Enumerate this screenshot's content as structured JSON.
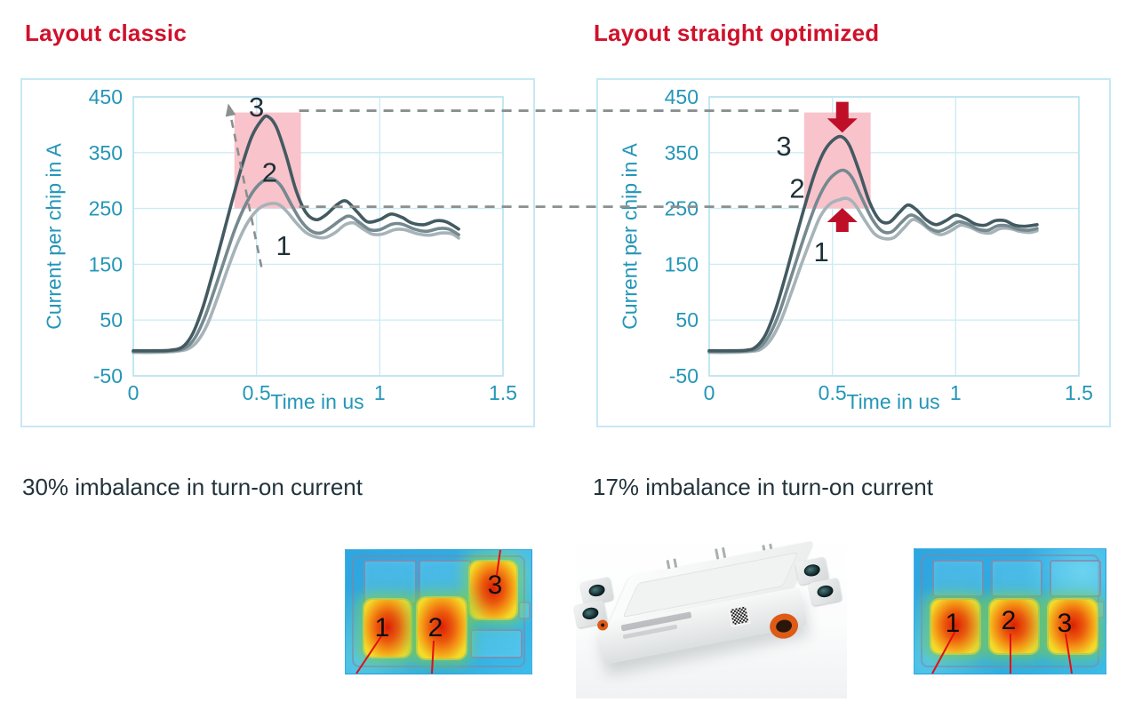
{
  "header": {
    "left_title": "Layout classic",
    "right_title": "Layout straight optimized"
  },
  "captions": {
    "left": "30% imbalance in turn-on current",
    "right": "17% imbalance in turn-on current"
  },
  "colors": {
    "title_red": "#d0112b",
    "arrow_red": "#bf0f28",
    "highlight_pink": "#f9c3cc",
    "axis_teal": "#2496b8",
    "grid": "#cdecf5",
    "plot_border": "#b9e3ef",
    "dashed_gray": "#8a8f90",
    "dark_text": "#22333b",
    "curve_1": "#a6b3b8",
    "curve_2": "#75898f",
    "curve_3": "#435a61",
    "leader_red": "#e40e12"
  },
  "chart_data": [
    {
      "type": "line",
      "title": "Layout classic",
      "xlabel": "Time in us",
      "ylabel": "Current per chip in A",
      "xlim": [
        0,
        1.5
      ],
      "ylim": [
        -50,
        450
      ],
      "xticks": [
        0,
        0.5,
        1,
        1.5
      ],
      "yticks": [
        450,
        350,
        250,
        150,
        50,
        -50
      ],
      "grid": true,
      "series": [
        {
          "name": "1",
          "color": "#a6b3b8",
          "peak_A": 258,
          "points": [
            [
              0,
              -8
            ],
            [
              0.08,
              -8
            ],
            [
              0.17,
              -6
            ],
            [
              0.22,
              -2
            ],
            [
              0.26,
              12
            ],
            [
              0.3,
              42
            ],
            [
              0.34,
              88
            ],
            [
              0.38,
              138
            ],
            [
              0.42,
              185
            ],
            [
              0.46,
              222
            ],
            [
              0.5,
              246
            ],
            [
              0.54,
              257
            ],
            [
              0.585,
              258
            ],
            [
              0.62,
              246
            ],
            [
              0.66,
              225
            ],
            [
              0.7,
              207
            ],
            [
              0.74,
              199
            ],
            [
              0.78,
              198
            ],
            [
              0.82,
              207
            ],
            [
              0.86,
              221
            ],
            [
              0.895,
              224
            ],
            [
              0.93,
              214
            ],
            [
              0.97,
              204
            ],
            [
              1.01,
              204
            ],
            [
              1.06,
              212
            ],
            [
              1.1,
              212
            ],
            [
              1.15,
              205
            ],
            [
              1.2,
              202
            ],
            [
              1.25,
              206
            ],
            [
              1.29,
              205
            ],
            [
              1.32,
              197
            ]
          ]
        },
        {
          "name": "2",
          "color": "#75898f",
          "peak_A": 303,
          "points": [
            [
              0,
              -6
            ],
            [
              0.08,
              -6
            ],
            [
              0.16,
              -5
            ],
            [
              0.21,
              0
            ],
            [
              0.25,
              18
            ],
            [
              0.29,
              55
            ],
            [
              0.33,
              105
            ],
            [
              0.37,
              158
            ],
            [
              0.41,
              210
            ],
            [
              0.45,
              252
            ],
            [
              0.49,
              283
            ],
            [
              0.53,
              300
            ],
            [
              0.565,
              303
            ],
            [
              0.6,
              290
            ],
            [
              0.64,
              258
            ],
            [
              0.68,
              228
            ],
            [
              0.72,
              210
            ],
            [
              0.76,
              206
            ],
            [
              0.8,
              216
            ],
            [
              0.85,
              232
            ],
            [
              0.88,
              236
            ],
            [
              0.92,
              224
            ],
            [
              0.96,
              212
            ],
            [
              1.0,
              212
            ],
            [
              1.05,
              222
            ],
            [
              1.09,
              222
            ],
            [
              1.14,
              213
            ],
            [
              1.19,
              209
            ],
            [
              1.24,
              214
            ],
            [
              1.28,
              213
            ],
            [
              1.32,
              203
            ]
          ]
        },
        {
          "name": "3",
          "color": "#435a61",
          "peak_A": 415,
          "points": [
            [
              0,
              -5
            ],
            [
              0.08,
              -5
            ],
            [
              0.15,
              -4
            ],
            [
              0.2,
              2
            ],
            [
              0.24,
              25
            ],
            [
              0.28,
              70
            ],
            [
              0.32,
              130
            ],
            [
              0.36,
              195
            ],
            [
              0.4,
              262
            ],
            [
              0.44,
              325
            ],
            [
              0.48,
              378
            ],
            [
              0.52,
              408
            ],
            [
              0.545,
              415
            ],
            [
              0.58,
              396
            ],
            [
              0.62,
              345
            ],
            [
              0.66,
              283
            ],
            [
              0.7,
              243
            ],
            [
              0.74,
              230
            ],
            [
              0.78,
              238
            ],
            [
              0.83,
              258
            ],
            [
              0.865,
              263
            ],
            [
              0.91,
              243
            ],
            [
              0.95,
              226
            ],
            [
              1.0,
              230
            ],
            [
              1.045,
              240
            ],
            [
              1.09,
              234
            ],
            [
              1.13,
              224
            ],
            [
              1.18,
              221
            ],
            [
              1.23,
              228
            ],
            [
              1.27,
              226
            ],
            [
              1.32,
              213
            ]
          ]
        }
      ],
      "annotations": {
        "highlight_box": {
          "t": [
            0.41,
            0.68
          ],
          "A": [
            250,
            422
          ]
        },
        "trend_arrow": {
          "from": [
            0.52,
            145
          ],
          "to": [
            0.385,
            438
          ]
        },
        "labels": [
          {
            "text": "3",
            "t": 0.5,
            "A": 432
          },
          {
            "text": "2",
            "t": 0.553,
            "A": 315
          },
          {
            "text": "1",
            "t": 0.61,
            "A": 183
          }
        ]
      }
    },
    {
      "type": "line",
      "title": "Layout straight optimized",
      "xlabel": "Time in us",
      "ylabel": "Current per chip in A",
      "xlim": [
        0,
        1.5
      ],
      "ylim": [
        -50,
        450
      ],
      "xticks": [
        0,
        0.5,
        1,
        1.5
      ],
      "yticks": [
        450,
        350,
        250,
        150,
        50,
        -50
      ],
      "grid": true,
      "series": [
        {
          "name": "1",
          "color": "#a6b3b8",
          "peak_A": 268,
          "points": [
            [
              0,
              -8
            ],
            [
              0.08,
              -8
            ],
            [
              0.17,
              -6
            ],
            [
              0.21,
              -2
            ],
            [
              0.25,
              15
            ],
            [
              0.29,
              48
            ],
            [
              0.33,
              95
            ],
            [
              0.37,
              145
            ],
            [
              0.41,
              192
            ],
            [
              0.45,
              235
            ],
            [
              0.49,
              258
            ],
            [
              0.53,
              266
            ],
            [
              0.56,
              268
            ],
            [
              0.59,
              258
            ],
            [
              0.63,
              230
            ],
            [
              0.67,
              205
            ],
            [
              0.71,
              196
            ],
            [
              0.75,
              198
            ],
            [
              0.79,
              215
            ],
            [
              0.825,
              230
            ],
            [
              0.86,
              224
            ],
            [
              0.9,
              210
            ],
            [
              0.94,
              203
            ],
            [
              0.98,
              210
            ],
            [
              1.02,
              220
            ],
            [
              1.06,
              216
            ],
            [
              1.1,
              208
            ],
            [
              1.14,
              206
            ],
            [
              1.18,
              214
            ],
            [
              1.22,
              214
            ],
            [
              1.26,
              209
            ],
            [
              1.3,
              207
            ],
            [
              1.33,
              210
            ]
          ]
        },
        {
          "name": "2",
          "color": "#75898f",
          "peak_A": 318,
          "points": [
            [
              0,
              -6
            ],
            [
              0.08,
              -6
            ],
            [
              0.16,
              -5
            ],
            [
              0.2,
              0
            ],
            [
              0.24,
              20
            ],
            [
              0.28,
              58
            ],
            [
              0.32,
              110
            ],
            [
              0.36,
              165
            ],
            [
              0.4,
              218
            ],
            [
              0.44,
              265
            ],
            [
              0.48,
              298
            ],
            [
              0.52,
              315
            ],
            [
              0.55,
              318
            ],
            [
              0.58,
              305
            ],
            [
              0.62,
              268
            ],
            [
              0.66,
              232
            ],
            [
              0.7,
              210
            ],
            [
              0.74,
              208
            ],
            [
              0.78,
              225
            ],
            [
              0.815,
              238
            ],
            [
              0.85,
              232
            ],
            [
              0.89,
              216
            ],
            [
              0.93,
              209
            ],
            [
              0.97,
              216
            ],
            [
              1.01,
              226
            ],
            [
              1.05,
              222
            ],
            [
              1.09,
              213
            ],
            [
              1.13,
              211
            ],
            [
              1.17,
              219
            ],
            [
              1.21,
              219
            ],
            [
              1.25,
              213
            ],
            [
              1.29,
              211
            ],
            [
              1.33,
              214
            ]
          ]
        },
        {
          "name": "3",
          "color": "#435a61",
          "peak_A": 378,
          "points": [
            [
              0,
              -5
            ],
            [
              0.08,
              -5
            ],
            [
              0.15,
              -4
            ],
            [
              0.19,
              2
            ],
            [
              0.23,
              25
            ],
            [
              0.27,
              70
            ],
            [
              0.31,
              130
            ],
            [
              0.35,
              195
            ],
            [
              0.39,
              258
            ],
            [
              0.43,
              315
            ],
            [
              0.47,
              355
            ],
            [
              0.51,
              375
            ],
            [
              0.54,
              378
            ],
            [
              0.57,
              362
            ],
            [
              0.61,
              315
            ],
            [
              0.65,
              262
            ],
            [
              0.69,
              230
            ],
            [
              0.73,
              225
            ],
            [
              0.77,
              242
            ],
            [
              0.805,
              256
            ],
            [
              0.84,
              248
            ],
            [
              0.88,
              230
            ],
            [
              0.92,
              221
            ],
            [
              0.96,
              228
            ],
            [
              1.0,
              238
            ],
            [
              1.04,
              232
            ],
            [
              1.08,
              222
            ],
            [
              1.12,
              220
            ],
            [
              1.16,
              228
            ],
            [
              1.2,
              228
            ],
            [
              1.24,
              220
            ],
            [
              1.28,
              218
            ],
            [
              1.33,
              221
            ]
          ]
        }
      ],
      "annotations": {
        "highlight_box": {
          "t": [
            0.385,
            0.655
          ],
          "A": [
            250,
            422
          ]
        },
        "down_arrow": {
          "t": 0.54,
          "base_A": 441,
          "tip_A": 386
        },
        "up_arrow": {
          "t": 0.54,
          "base_A": 208,
          "tip_A": 251
        },
        "labels": [
          {
            "text": "3",
            "t": 0.303,
            "A": 362
          },
          {
            "text": "2",
            "t": 0.357,
            "A": 286
          },
          {
            "text": "1",
            "t": 0.455,
            "A": 172
          }
        ]
      }
    }
  ],
  "connectors": {
    "A_values": [
      422,
      250
    ],
    "style": "dashed"
  },
  "heatmaps": {
    "left": {
      "chips": [
        "1",
        "2",
        "3"
      ]
    },
    "right": {
      "chips": [
        "1",
        "2",
        "3"
      ]
    }
  }
}
